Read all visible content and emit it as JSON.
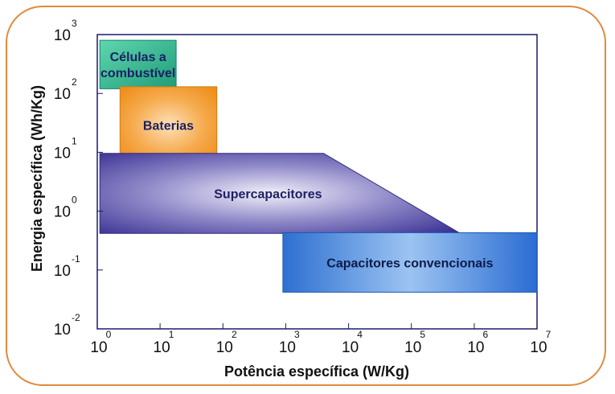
{
  "chart_data": {
    "type": "area",
    "title": "",
    "xlabel": "Potência específica (W/Kg)",
    "ylabel": "Energia específica (Wh/Kg)",
    "xscale": "log",
    "yscale": "log",
    "xlim": [
      1,
      10000000
    ],
    "ylim": [
      0.01,
      1000
    ],
    "grid": false,
    "x_ticks": [
      {
        "base": "10",
        "exp": "0"
      },
      {
        "base": "10",
        "exp": "1"
      },
      {
        "base": "10",
        "exp": "2"
      },
      {
        "base": "10",
        "exp": "3"
      },
      {
        "base": "10",
        "exp": "4"
      },
      {
        "base": "10",
        "exp": "5"
      },
      {
        "base": "10",
        "exp": "6"
      },
      {
        "base": "10",
        "exp": "7"
      }
    ],
    "y_ticks": [
      {
        "base": "10",
        "exp": "3"
      },
      {
        "base": "10",
        "exp": "2"
      },
      {
        "base": "10",
        "exp": "1"
      },
      {
        "base": "10",
        "exp": "0"
      },
      {
        "base": "10",
        "exp": "-1"
      },
      {
        "base": "10",
        "exp": "-2"
      }
    ],
    "regions": [
      {
        "name": "Células a combustível",
        "label_lines": [
          "Células a",
          "combustível"
        ],
        "color": "#2bb58e",
        "polygon": [
          [
            1.1,
            800
          ],
          [
            18,
            800
          ],
          [
            18,
            120
          ],
          [
            1.1,
            120
          ]
        ]
      },
      {
        "name": "Baterias",
        "label_lines": [
          "Baterias"
        ],
        "color": "#f39a28",
        "polygon": [
          [
            2.3,
            130
          ],
          [
            80,
            130
          ],
          [
            80,
            6.4
          ],
          [
            2.3,
            6.4
          ]
        ]
      },
      {
        "name": "Supercapacitores",
        "label_lines": [
          "Supercapacitores"
        ],
        "color": "#4a3fa5",
        "polygon": [
          [
            1.1,
            9.6
          ],
          [
            4000,
            9.6
          ],
          [
            600000,
            0.42
          ],
          [
            1.1,
            0.42
          ]
        ]
      },
      {
        "name": "Capacitores convencionais",
        "label_lines": [
          "Capacitores convencionais"
        ],
        "color": "#2468cc",
        "polygon": [
          [
            900,
            0.43
          ],
          [
            10000000,
            0.43
          ],
          [
            10000000,
            0.042
          ],
          [
            900,
            0.042
          ]
        ]
      }
    ]
  }
}
